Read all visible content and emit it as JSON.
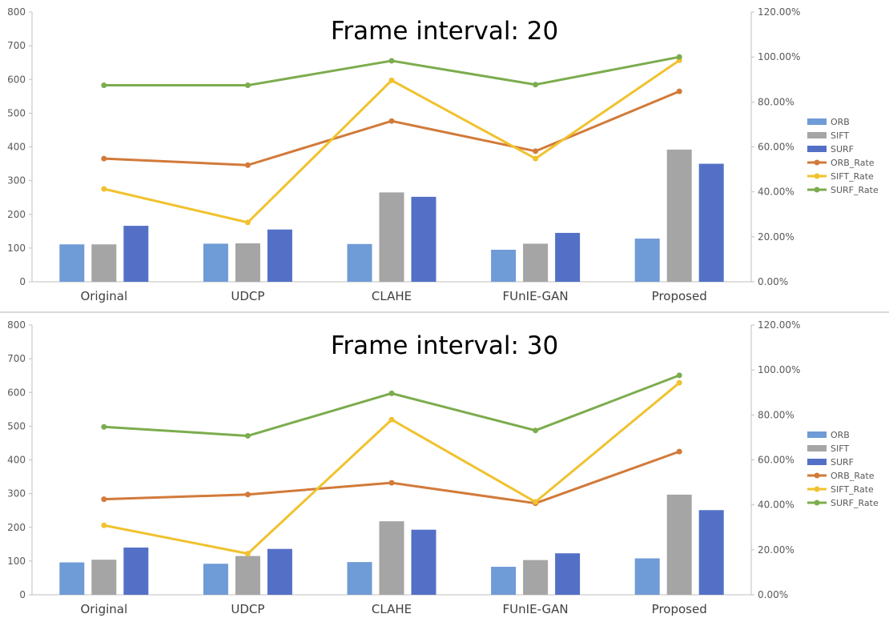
{
  "colors": {
    "ORB": "#6f9bd6",
    "SIFT": "#a5a5a5",
    "SURF": "#5470c6",
    "ORB_Rate": "#d27a3a",
    "SIFT_Rate": "#f0c22e",
    "SURF_Rate": "#7cac4e",
    "axis": "#bfbfbf",
    "tick_text": "#595959"
  },
  "chart_data": [
    {
      "type": "bar",
      "title": "Frame interval: 20",
      "categories": [
        "Original",
        "UDCP",
        "CLAHE",
        "FUnIE-GAN",
        "Proposed"
      ],
      "ylim": [
        0,
        800
      ],
      "y_ticks": [
        "0",
        "100",
        "200",
        "300",
        "400",
        "500",
        "600",
        "700",
        "800"
      ],
      "y2lim": [
        0,
        1.2
      ],
      "y2_ticks": [
        "0.00%",
        "20.00%",
        "40.00%",
        "60.00%",
        "80.00%",
        "100.00%",
        "120.00%"
      ],
      "grid": false,
      "legend_position": "right",
      "series": [
        {
          "name": "ORB",
          "kind": "bar",
          "values": [
            111,
            113,
            112,
            95,
            128
          ]
        },
        {
          "name": "SIFT",
          "kind": "bar",
          "values": [
            111,
            114,
            265,
            113,
            392
          ]
        },
        {
          "name": "SURF",
          "kind": "bar",
          "values": [
            166,
            155,
            252,
            145,
            350
          ]
        },
        {
          "name": "ORB_Rate",
          "kind": "line",
          "axis": "y2",
          "values": [
            0.548,
            0.519,
            0.715,
            0.581,
            0.847
          ]
        },
        {
          "name": "SIFT_Rate",
          "kind": "line",
          "axis": "y2",
          "values": [
            0.413,
            0.264,
            0.896,
            0.548,
            0.985
          ]
        },
        {
          "name": "SURF_Rate",
          "kind": "line",
          "axis": "y2",
          "values": [
            0.874,
            0.874,
            0.983,
            0.877,
            1.0
          ]
        }
      ]
    },
    {
      "type": "bar",
      "title": "Frame interval: 30",
      "categories": [
        "Original",
        "UDCP",
        "CLAHE",
        "FUnIE-GAN",
        "Proposed"
      ],
      "ylim": [
        0,
        800
      ],
      "y_ticks": [
        "0",
        "100",
        "200",
        "300",
        "400",
        "500",
        "600",
        "700",
        "800"
      ],
      "y2lim": [
        0,
        1.2
      ],
      "y2_ticks": [
        "0.00%",
        "20.00%",
        "40.00%",
        "60.00%",
        "80.00%",
        "100.00%",
        "120.00%"
      ],
      "grid": false,
      "legend_position": "right",
      "series": [
        {
          "name": "ORB",
          "kind": "bar",
          "values": [
            96,
            92,
            97,
            83,
            108
          ]
        },
        {
          "name": "SIFT",
          "kind": "bar",
          "values": [
            104,
            115,
            218,
            103,
            297
          ]
        },
        {
          "name": "SURF",
          "kind": "bar",
          "values": [
            140,
            136,
            193,
            123,
            251
          ]
        },
        {
          "name": "ORB_Rate",
          "kind": "line",
          "axis": "y2",
          "values": [
            0.425,
            0.446,
            0.498,
            0.407,
            0.637
          ]
        },
        {
          "name": "SIFT_Rate",
          "kind": "line",
          "axis": "y2",
          "values": [
            0.309,
            0.183,
            0.779,
            0.413,
            0.943
          ]
        },
        {
          "name": "SURF_Rate",
          "kind": "line",
          "axis": "y2",
          "values": [
            0.747,
            0.707,
            0.896,
            0.731,
            0.976
          ]
        }
      ]
    }
  ]
}
